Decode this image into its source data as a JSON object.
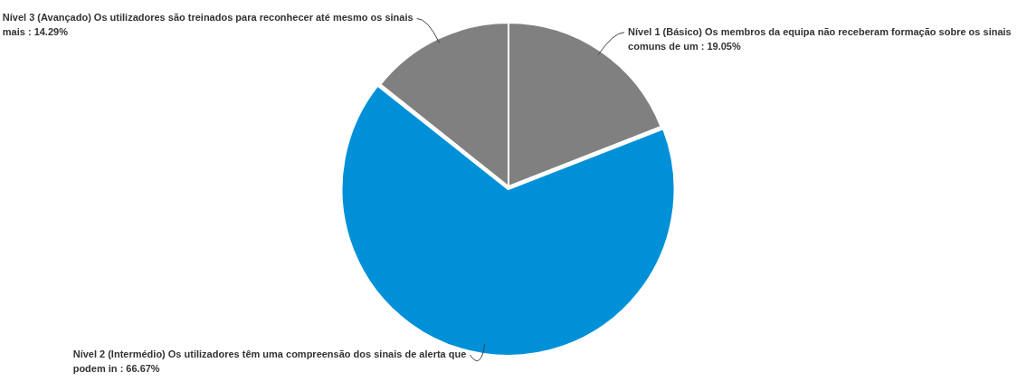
{
  "chart_data": {
    "type": "pie",
    "categories": [
      "Nível 1 (Básico) Os membros da equipa não receberam formação sobre os sinais comuns de um",
      "Nível 2 (Intermédio) Os utilizadores têm uma compreensão dos sinais de alerta que podem in",
      "Nível 3 (Avançado) Os utilizadores são treinados para reconhecer até mesmo os sinais mais"
    ],
    "values": [
      19.05,
      66.67,
      14.29
    ],
    "value_labels": [
      "19.05%",
      "66.67%",
      "14.29%"
    ],
    "colors": [
      "#808080",
      "#0090d8",
      "#808080"
    ],
    "legend": false
  }
}
